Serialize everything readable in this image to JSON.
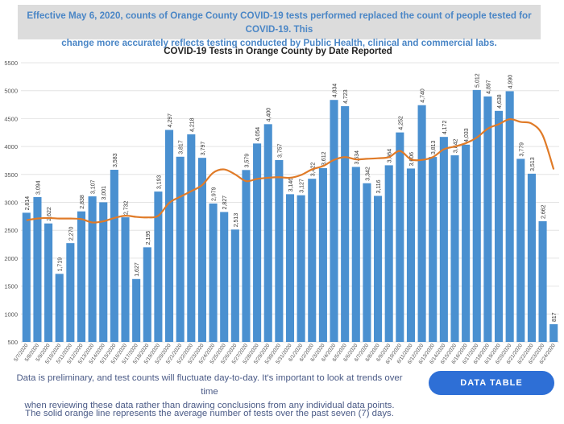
{
  "banner": {
    "line1": "Effective May 6, 2020, counts of Orange County COVID-19 tests performed replaced the count of people tested for COVID-19. This",
    "line2": "change more accurately reflects testing conducted by Public Health, clinical and commercial labs."
  },
  "notes": {
    "line1": "Data is preliminary, and test counts will fluctuate day-to-day. It's important to look at trends over time",
    "line2": "when reviewing these data rather than drawing conclusions from any individual data points.",
    "line3": "The solid orange line represents the average number of tests over the past seven (7) days."
  },
  "data_table_button": {
    "label": "DATA TABLE"
  },
  "colors": {
    "bar": "#4a90d0",
    "line": "#e07b28",
    "banner_bg": "#dcdcdc",
    "banner_text": "#4a86c6",
    "button": "#2e6fd6"
  },
  "chart_data": {
    "type": "bar",
    "title": "COVID-19 Tests in Orange County by Date Reported",
    "xlabel": "",
    "ylabel": "",
    "ylim": [
      500,
      5500
    ],
    "yticks": [
      500,
      1000,
      1500,
      2000,
      2500,
      3000,
      3500,
      4000,
      4500,
      5000,
      5500
    ],
    "categories": [
      "5/7/2020",
      "5/8/2020",
      "5/9/2020",
      "5/10/2020",
      "5/11/2020",
      "5/12/2020",
      "5/13/2020",
      "5/14/2020",
      "5/15/2020",
      "5/16/2020",
      "5/17/2020",
      "5/18/2020",
      "5/19/2020",
      "5/20/2020",
      "5/21/2020",
      "5/22/2020",
      "5/23/2020",
      "5/24/2020",
      "5/25/2020",
      "5/26/2020",
      "5/27/2020",
      "5/28/2020",
      "5/29/2020",
      "5/30/2020",
      "5/31/2020",
      "6/1/2020",
      "6/2/2020",
      "6/3/2020",
      "6/4/2020",
      "6/5/2020",
      "6/6/2020",
      "6/7/2020",
      "6/8/2020",
      "6/9/2020",
      "6/10/2020",
      "6/11/2020",
      "6/12/2020",
      "6/13/2020",
      "6/14/2020",
      "6/15/2020",
      "6/16/2020",
      "6/17/2020",
      "6/18/2020",
      "6/19/2020",
      "6/20/2020",
      "6/21/2020",
      "6/22/2020",
      "6/23/2020",
      "6/24/2020"
    ],
    "series": [
      {
        "name": "Tests performed",
        "type": "bar",
        "values": [
          2814,
          3094,
          2622,
          1719,
          2270,
          2838,
          3107,
          3001,
          3583,
          2732,
          1627,
          2195,
          3193,
          4297,
          3817,
          4218,
          3797,
          2979,
          2827,
          2513,
          3579,
          4054,
          4400,
          3757,
          3146,
          3127,
          3422,
          3612,
          4834,
          4723,
          3634,
          3342,
          3116,
          3664,
          4252,
          3606,
          4740,
          3813,
          4172,
          3842,
          4033,
          5012,
          4897,
          4638,
          4990,
          3779,
          3513,
          2662,
          817
        ]
      },
      {
        "name": "7-day average",
        "type": "line",
        "values": [
          2680,
          2710,
          2720,
          2710,
          2710,
          2700,
          2640,
          2660,
          2720,
          2760,
          2740,
          2730,
          2760,
          2990,
          3100,
          3200,
          3310,
          3530,
          3590,
          3500,
          3380,
          3420,
          3440,
          3450,
          3440,
          3490,
          3590,
          3650,
          3760,
          3810,
          3770,
          3780,
          3790,
          3810,
          3920,
          3770,
          3760,
          3810,
          3950,
          4000,
          4060,
          4160,
          4320,
          4400,
          4490,
          4440,
          4410,
          4200,
          3590
        ]
      }
    ]
  }
}
